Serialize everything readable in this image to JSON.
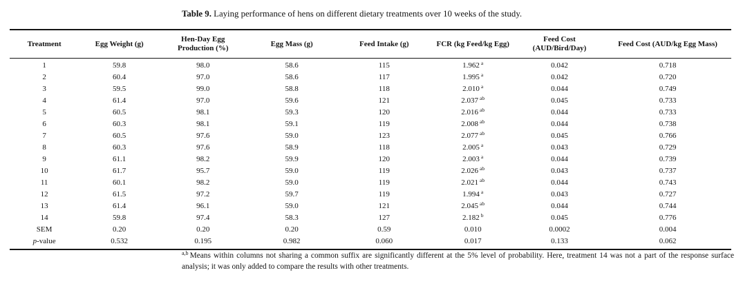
{
  "caption": {
    "label": "Table 9.",
    "text": "Laying performance of hens on different dietary treatments over 10 weeks of the study."
  },
  "table": {
    "columns": [
      "Treatment",
      "Egg Weight (g)",
      "Hen-Day Egg Production (%)",
      "Egg Mass (g)",
      "Feed Intake (g)",
      "FCR (kg Feed/kg Egg)",
      "Feed Cost (AUD/Bird/Day)",
      "Feed Cost (AUD/kg Egg Mass)"
    ],
    "rows": [
      {
        "label": "1",
        "values": [
          "59.8",
          "98.0",
          "58.6",
          "115"
        ],
        "fcr": "1.962",
        "fcr_sup": "a",
        "costs": [
          "0.042",
          "0.718"
        ]
      },
      {
        "label": "2",
        "values": [
          "60.4",
          "97.0",
          "58.6",
          "117"
        ],
        "fcr": "1.995",
        "fcr_sup": "a",
        "costs": [
          "0.042",
          "0.720"
        ]
      },
      {
        "label": "3",
        "values": [
          "59.5",
          "99.0",
          "58.8",
          "118"
        ],
        "fcr": "2.010",
        "fcr_sup": "a",
        "costs": [
          "0.044",
          "0.749"
        ]
      },
      {
        "label": "4",
        "values": [
          "61.4",
          "97.0",
          "59.6",
          "121"
        ],
        "fcr": "2.037",
        "fcr_sup": "ab",
        "costs": [
          "0.045",
          "0.733"
        ]
      },
      {
        "label": "5",
        "values": [
          "60.5",
          "98.1",
          "59.3",
          "120"
        ],
        "fcr": "2.016",
        "fcr_sup": "ab",
        "costs": [
          "0.044",
          "0.733"
        ]
      },
      {
        "label": "6",
        "values": [
          "60.3",
          "98.1",
          "59.1",
          "119"
        ],
        "fcr": "2.008",
        "fcr_sup": "ab",
        "costs": [
          "0.044",
          "0.738"
        ]
      },
      {
        "label": "7",
        "values": [
          "60.5",
          "97.6",
          "59.0",
          "123"
        ],
        "fcr": "2.077",
        "fcr_sup": "ab",
        "costs": [
          "0.045",
          "0.766"
        ]
      },
      {
        "label": "8",
        "values": [
          "60.3",
          "97.6",
          "58.9",
          "118"
        ],
        "fcr": "2.005",
        "fcr_sup": "a",
        "costs": [
          "0.043",
          "0.729"
        ]
      },
      {
        "label": "9",
        "values": [
          "61.1",
          "98.2",
          "59.9",
          "120"
        ],
        "fcr": "2.003",
        "fcr_sup": "a",
        "costs": [
          "0.044",
          "0.739"
        ]
      },
      {
        "label": "10",
        "values": [
          "61.7",
          "95.7",
          "59.0",
          "119"
        ],
        "fcr": "2.026",
        "fcr_sup": "ab",
        "costs": [
          "0.043",
          "0.737"
        ]
      },
      {
        "label": "11",
        "values": [
          "60.1",
          "98.2",
          "59.0",
          "119"
        ],
        "fcr": "2.021",
        "fcr_sup": "ab",
        "costs": [
          "0.044",
          "0.743"
        ]
      },
      {
        "label": "12",
        "values": [
          "61.5",
          "97.2",
          "59.7",
          "119"
        ],
        "fcr": "1.994",
        "fcr_sup": "a",
        "costs": [
          "0.043",
          "0.727"
        ]
      },
      {
        "label": "13",
        "values": [
          "61.4",
          "96.1",
          "59.0",
          "121"
        ],
        "fcr": "2.045",
        "fcr_sup": "ab",
        "costs": [
          "0.044",
          "0.744"
        ]
      },
      {
        "label": "14",
        "values": [
          "59.8",
          "97.4",
          "58.3",
          "127"
        ],
        "fcr": "2.182",
        "fcr_sup": "b",
        "costs": [
          "0.045",
          "0.776"
        ]
      },
      {
        "label": "SEM",
        "values": [
          "0.20",
          "0.20",
          "0.20",
          "0.59"
        ],
        "fcr": "0.010",
        "fcr_sup": "",
        "costs": [
          "0.0002",
          "0.004"
        ]
      },
      {
        "label": "p-value",
        "values": [
          "0.532",
          "0.195",
          "0.982",
          "0.060"
        ],
        "fcr": "0.017",
        "fcr_sup": "",
        "costs": [
          "0.133",
          "0.062"
        ]
      }
    ]
  },
  "footnote": {
    "marker": "a,b",
    "text": "Means within columns not sharing a common suffix are significantly different at the 5% level of probability. Here, treatment 14 was not a part of the response surface analysis; it was only added to compare the results with other treatments."
  }
}
